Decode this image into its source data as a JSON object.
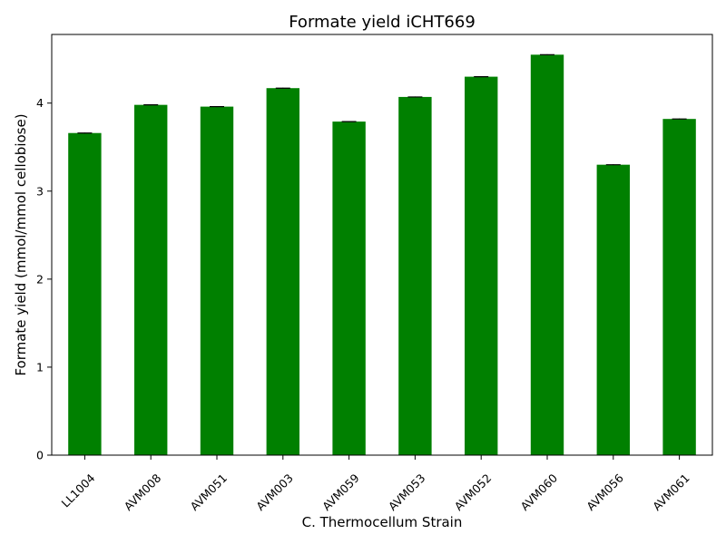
{
  "chart_data": {
    "type": "bar",
    "title": "Formate yield iCHT669",
    "xlabel": "C. Thermocellum Strain",
    "ylabel": "Formate yield (mmol/mmol cellobiose)",
    "categories": [
      "LL1004",
      "AVM008",
      "AVM051",
      "AVM003",
      "AVM059",
      "AVM053",
      "AVM052",
      "AVM060",
      "AVM056",
      "AVM061"
    ],
    "values": [
      3.66,
      3.98,
      3.96,
      4.17,
      3.79,
      4.07,
      4.3,
      4.55,
      3.3,
      3.82
    ],
    "errors": [
      0.005,
      0.005,
      0.005,
      0.005,
      0.005,
      0.005,
      0.005,
      0.005,
      0.005,
      0.005
    ],
    "ylim": [
      0,
      4.78
    ],
    "yticks": [
      0,
      1,
      2,
      3,
      4
    ],
    "grid": false,
    "bar_color": "#008000",
    "error_color": "#000000"
  }
}
